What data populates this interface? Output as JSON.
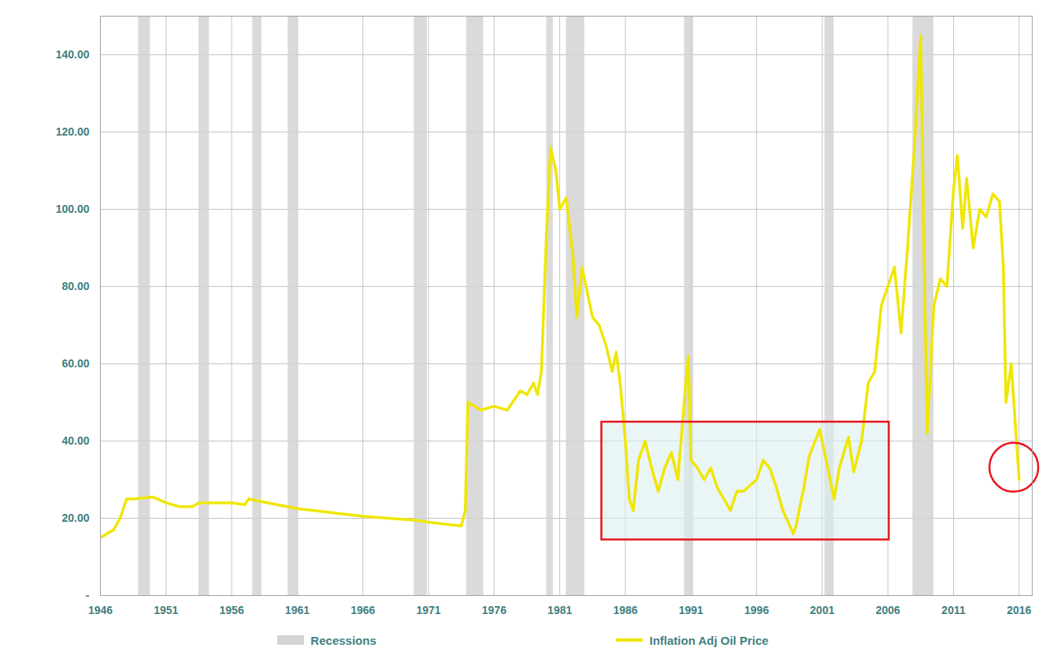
{
  "chart_data": {
    "type": "line",
    "x": [
      1946,
      1947,
      1947.5,
      1948,
      1948.5,
      1950,
      1951,
      1952,
      1953,
      1953.5,
      1956,
      1957,
      1957.3,
      1958,
      1961,
      1966,
      1970,
      1971,
      1973.5,
      1973.8,
      1974,
      1975,
      1976,
      1977,
      1978,
      1978.5,
      1979,
      1979.3,
      1979.6,
      1980,
      1980.3,
      1980.7,
      1981,
      1981.5,
      1982,
      1982.3,
      1982.7,
      1983,
      1983.5,
      1984,
      1984.5,
      1985,
      1985.3,
      1985.6,
      1986,
      1986.3,
      1986.6,
      1987,
      1987.5,
      1988,
      1988.5,
      1989,
      1989.5,
      1990,
      1990.6,
      1990.8,
      1991,
      1991.5,
      1992,
      1992.5,
      1993,
      1994,
      1994.5,
      1995,
      1996,
      1996.5,
      1997,
      1997.5,
      1998,
      1998.8,
      1999,
      1999.6,
      2000,
      2000.8,
      2001.3,
      2001.9,
      2002.3,
      2003,
      2003.4,
      2004,
      2004.5,
      2005,
      2005.5,
      2006,
      2006.5,
      2007,
      2007.5,
      2008,
      2008.5,
      2008.8,
      2009,
      2009.5,
      2010,
      2010.5,
      2011,
      2011.3,
      2011.7,
      2012,
      2012.5,
      2013,
      2013.5,
      2014,
      2014.5,
      2014.8,
      2015,
      2015.4,
      2015.7,
      2016
    ],
    "series": [
      {
        "name": "Inflation Adj Oil Price",
        "color": "#f0e600",
        "values": [
          15,
          17,
          20,
          25,
          25,
          25.5,
          24,
          23,
          23,
          24,
          24,
          23.5,
          25,
          24.5,
          22.5,
          20.5,
          19.5,
          19,
          18,
          22,
          50,
          48,
          49,
          48,
          53,
          52,
          55,
          52,
          58,
          95,
          116,
          110,
          100,
          103,
          88,
          72,
          85,
          80,
          72,
          70,
          65,
          58,
          63,
          55,
          40,
          25,
          22,
          35,
          40,
          33,
          27,
          33,
          37,
          30,
          55,
          62,
          35,
          33,
          30,
          33,
          28,
          22,
          27,
          27,
          30,
          35,
          33,
          28,
          22,
          16,
          18,
          28,
          36,
          43,
          35,
          25,
          33,
          41,
          32,
          40,
          55,
          58,
          75,
          80,
          85,
          68,
          90,
          115,
          145,
          80,
          42,
          75,
          82,
          80,
          105,
          114,
          95,
          108,
          90,
          100,
          98,
          104,
          102,
          85,
          50,
          60,
          45,
          30
        ]
      }
    ],
    "recessions": {
      "name": "Recessions",
      "color": "#d4d4d4",
      "periods": [
        [
          1948.9,
          1949.8
        ],
        [
          1953.5,
          1954.3
        ],
        [
          1957.6,
          1958.3
        ],
        [
          1960.3,
          1961.1
        ],
        [
          1969.9,
          1970.9
        ],
        [
          1973.9,
          1975.2
        ],
        [
          1980.0,
          1980.5
        ],
        [
          1981.5,
          1982.9
        ],
        [
          1990.5,
          1991.2
        ],
        [
          2001.2,
          2001.9
        ],
        [
          2007.9,
          2009.5
        ]
      ]
    },
    "annotations": [
      {
        "shape": "rect",
        "x": [
          1984.2,
          2006.1
        ],
        "y": [
          14.4,
          44.9
        ],
        "color": "#e8141b"
      },
      {
        "shape": "circle",
        "x": 2015.6,
        "y": 33.2,
        "color": "#e8141b"
      }
    ],
    "xlim": [
      1946,
      2017
    ],
    "xticks": [
      1946,
      1951,
      1956,
      1961,
      1966,
      1971,
      1976,
      1981,
      1986,
      1991,
      1996,
      2001,
      2006,
      2011,
      2016
    ],
    "ylim": [
      0,
      150
    ],
    "yticks": [
      {
        "value": 0,
        "label": "-"
      },
      {
        "value": 20,
        "label": "20.00"
      },
      {
        "value": 40,
        "label": "40.00"
      },
      {
        "value": 60,
        "label": "60.00"
      },
      {
        "value": 80,
        "label": "80.00"
      },
      {
        "value": 100,
        "label": "100.00"
      },
      {
        "value": 120,
        "label": "120.00"
      },
      {
        "value": 140,
        "label": "140.00"
      }
    ],
    "grid": true,
    "legend": "bottom"
  }
}
